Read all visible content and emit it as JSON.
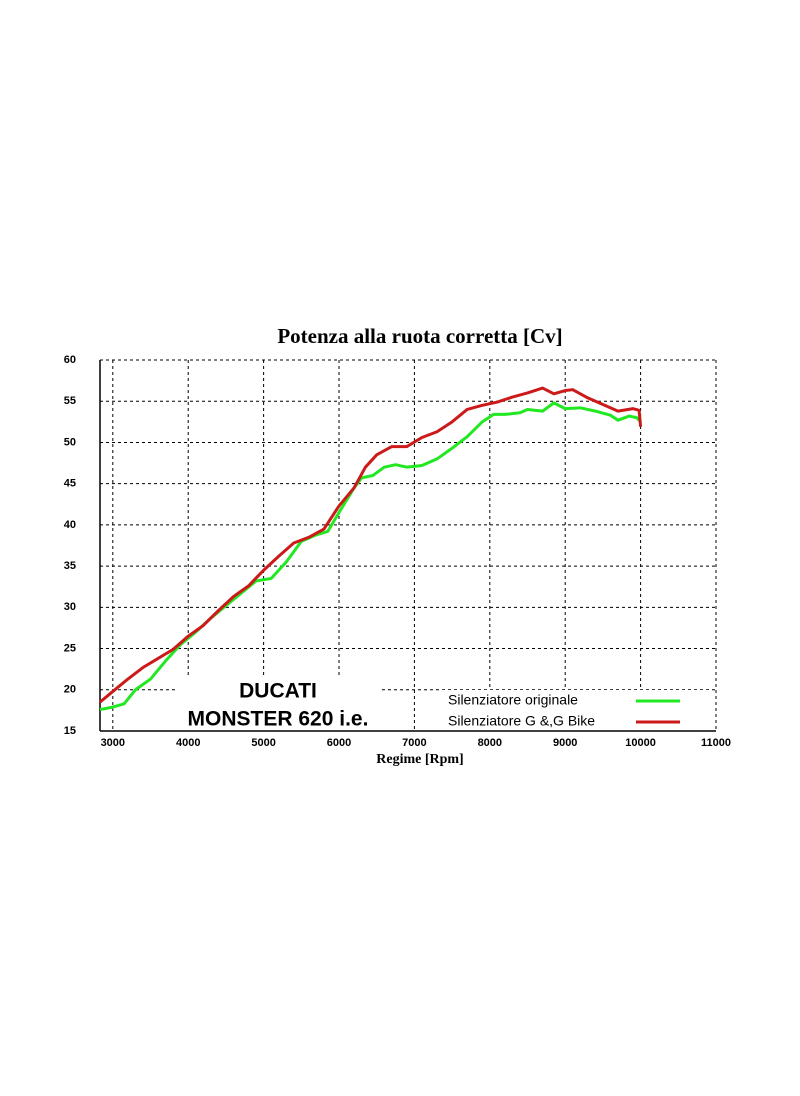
{
  "chart_data": {
    "type": "line",
    "title": "Potenza alla ruota corretta [Cv]",
    "x_label": "Regime [Rpm]",
    "annotations": [
      "DUCATI",
      "MONSTER 620 i.e."
    ],
    "xlim": [
      2830,
      11000
    ],
    "xticks": [
      3000,
      4000,
      5000,
      6000,
      7000,
      8000,
      9000,
      10000,
      11000
    ],
    "ylim": [
      15,
      60
    ],
    "yticks": [
      15,
      20,
      25,
      30,
      35,
      40,
      45,
      50,
      55,
      60
    ],
    "grid": true,
    "legend": "lower right",
    "series": [
      {
        "name": "Silenziatore originale",
        "color": "#22e822",
        "x": [
          2830,
          3000,
          3150,
          3300,
          3500,
          3700,
          3900,
          4100,
          4300,
          4500,
          4700,
          4900,
          5100,
          5300,
          5500,
          5700,
          5850,
          6000,
          6200,
          6300,
          6450,
          6600,
          6750,
          6900,
          7100,
          7300,
          7500,
          7700,
          7900,
          8050,
          8200,
          8400,
          8500,
          8700,
          8850,
          9000,
          9200,
          9400,
          9600,
          9700,
          9850,
          9950,
          10000
        ],
        "values": [
          17.6,
          17.9,
          18.3,
          20,
          21.3,
          23.5,
          25.5,
          27,
          28.7,
          30.2,
          31.7,
          33.2,
          33.5,
          35.5,
          38,
          38.8,
          39.2,
          41.5,
          44.5,
          45.7,
          46,
          47,
          47.3,
          47,
          47.2,
          48,
          49.3,
          50.7,
          52.5,
          53.4,
          53.4,
          53.6,
          54,
          53.8,
          54.8,
          54.1,
          54.2,
          53.8,
          53.3,
          52.7,
          53.2,
          53,
          52.5
        ]
      },
      {
        "name": "Silenziatore G &,G Bike",
        "color": "#cc1a1a",
        "x": [
          2830,
          3000,
          3200,
          3400,
          3600,
          3800,
          4000,
          4200,
          4400,
          4600,
          4800,
          5000,
          5200,
          5400,
          5600,
          5800,
          6000,
          6200,
          6350,
          6500,
          6700,
          6900,
          7100,
          7300,
          7500,
          7700,
          7900,
          8100,
          8300,
          8500,
          8700,
          8850,
          9000,
          9100,
          9300,
          9500,
          9700,
          9900,
          9980,
          10000
        ],
        "values": [
          18.5,
          19.8,
          21.3,
          22.7,
          23.8,
          24.9,
          26.5,
          27.8,
          29.6,
          31.3,
          32.6,
          34.5,
          36.2,
          37.8,
          38.5,
          39.5,
          42.3,
          44.5,
          47,
          48.5,
          49.5,
          49.5,
          50.6,
          51.3,
          52.5,
          54,
          54.5,
          54.9,
          55.5,
          56,
          56.6,
          55.9,
          56.3,
          56.4,
          55.4,
          54.6,
          53.8,
          54.1,
          53.9,
          51.9
        ]
      }
    ]
  }
}
